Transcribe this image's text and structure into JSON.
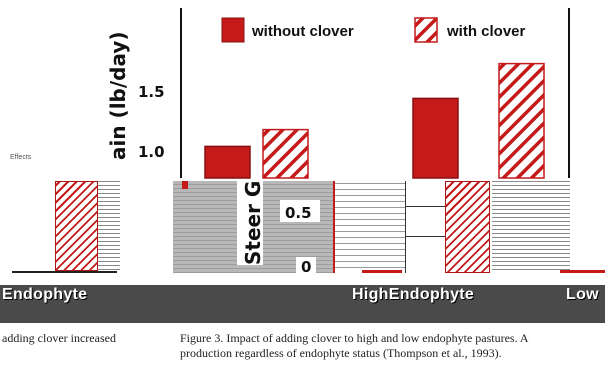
{
  "tag": "Effects",
  "chart_data": {
    "type": "bar",
    "ylabel": "Steer Gain (lb/day)",
    "ylabel_visible_top": "ain (lb/day)",
    "ylabel_visible_bottom": "Steer G",
    "yticks": [
      "1.5",
      "1.0",
      "0.5",
      "0"
    ],
    "ylim": [
      0,
      2.0
    ],
    "categories": [
      "Low Endophyte",
      "High Endophyte"
    ],
    "series": [
      {
        "name": "without clover",
        "values": [
          1.03,
          1.43
        ],
        "color": "#c41a1a"
      },
      {
        "name": "with clover",
        "values": [
          1.17,
          1.72
        ],
        "color": "#c41a1a",
        "pattern": "hatch"
      }
    ],
    "legend": {
      "placement": "top"
    }
  },
  "band": {
    "left_label": "Endophyte",
    "mid_label": "HighEndophyte",
    "right_label": "Low"
  },
  "caption": {
    "left": "adding clover increased",
    "right_line1": "Figure 3.  Impact of adding clover to high and low endophyte pastures.  A",
    "right_line2": "production regardless of endophyte status (Thompson et al., 1993)."
  }
}
